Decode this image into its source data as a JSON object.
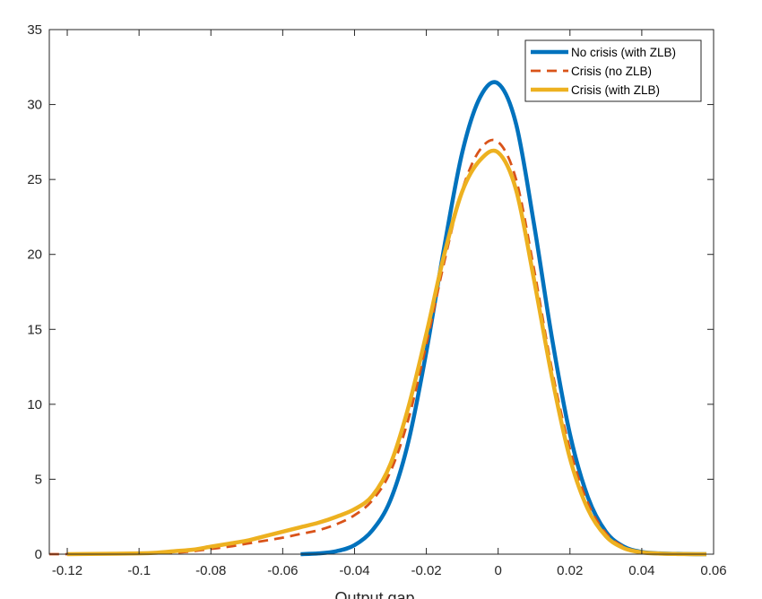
{
  "chart_data": {
    "type": "line",
    "title": "",
    "xlabel": "Output gap",
    "ylabel": "",
    "xlim": [
      -0.125,
      0.06
    ],
    "ylim": [
      0,
      35
    ],
    "xticks": [
      -0.12,
      -0.1,
      -0.08,
      -0.06,
      -0.04,
      -0.02,
      0,
      0.02,
      0.04,
      0.06
    ],
    "yticks": [
      0,
      5,
      10,
      15,
      20,
      25,
      30,
      35
    ],
    "xtick_labels": [
      "-0.12",
      "-0.1",
      "-0.08",
      "-0.06",
      "-0.04",
      "-0.02",
      "0",
      "0.02",
      "0.04",
      "0.06"
    ],
    "ytick_labels": [
      "0",
      "5",
      "10",
      "15",
      "20",
      "25",
      "30",
      "35"
    ],
    "grid": false,
    "legend_position": "top-right",
    "series": [
      {
        "name": "No crisis (with ZLB)",
        "color": "#0072BD",
        "style": "solid",
        "x": [
          -0.055,
          -0.05,
          -0.045,
          -0.04,
          -0.035,
          -0.03,
          -0.025,
          -0.02,
          -0.015,
          -0.01,
          -0.005,
          0,
          0.005,
          0.01,
          0.015,
          0.02,
          0.025,
          0.03,
          0.035,
          0.04,
          0.045,
          0.05,
          0.055,
          0.058
        ],
        "y": [
          0,
          0.05,
          0.2,
          0.6,
          1.6,
          3.6,
          7.5,
          13.5,
          20.5,
          26.8,
          30.5,
          31.4,
          28.7,
          22.0,
          14.4,
          8.0,
          3.8,
          1.5,
          0.5,
          0.15,
          0.05,
          0.02,
          0.0,
          0.0
        ]
      },
      {
        "name": "Crisis (no ZLB)",
        "color": "#D95319",
        "style": "dashed",
        "x": [
          -0.125,
          -0.12,
          -0.11,
          -0.1,
          -0.09,
          -0.085,
          -0.08,
          -0.075,
          -0.07,
          -0.065,
          -0.06,
          -0.055,
          -0.05,
          -0.045,
          -0.04,
          -0.035,
          -0.03,
          -0.025,
          -0.02,
          -0.015,
          -0.01,
          -0.005,
          0,
          0.005,
          0.01,
          0.015,
          0.02,
          0.025,
          0.03,
          0.035,
          0.04,
          0.045,
          0.05,
          0.055,
          0.058
        ],
        "y": [
          0,
          0,
          0.02,
          0.05,
          0.1,
          0.2,
          0.35,
          0.5,
          0.7,
          0.9,
          1.1,
          1.35,
          1.6,
          2.0,
          2.6,
          3.6,
          5.5,
          9.0,
          14.0,
          19.5,
          24.3,
          27.0,
          27.5,
          25.0,
          19.0,
          12.3,
          7.0,
          3.4,
          1.4,
          0.5,
          0.15,
          0.05,
          0.01,
          0.0,
          0.0
        ]
      },
      {
        "name": "Crisis (with ZLB)",
        "color": "#EDB120",
        "style": "solid",
        "x": [
          -0.12,
          -0.11,
          -0.1,
          -0.095,
          -0.09,
          -0.085,
          -0.08,
          -0.075,
          -0.07,
          -0.065,
          -0.06,
          -0.055,
          -0.05,
          -0.045,
          -0.04,
          -0.035,
          -0.03,
          -0.025,
          -0.02,
          -0.015,
          -0.01,
          -0.005,
          0,
          0.005,
          0.01,
          0.015,
          0.02,
          0.025,
          0.03,
          0.035,
          0.04,
          0.045,
          0.05,
          0.055,
          0.058
        ],
        "y": [
          0,
          0.02,
          0.05,
          0.1,
          0.2,
          0.3,
          0.5,
          0.7,
          0.9,
          1.2,
          1.5,
          1.8,
          2.1,
          2.5,
          3.0,
          3.9,
          6.0,
          9.8,
          14.7,
          20.0,
          24.2,
          26.3,
          26.8,
          24.3,
          18.3,
          11.8,
          6.4,
          3.0,
          1.2,
          0.4,
          0.12,
          0.04,
          0.01,
          0.0,
          0.0
        ]
      }
    ]
  }
}
